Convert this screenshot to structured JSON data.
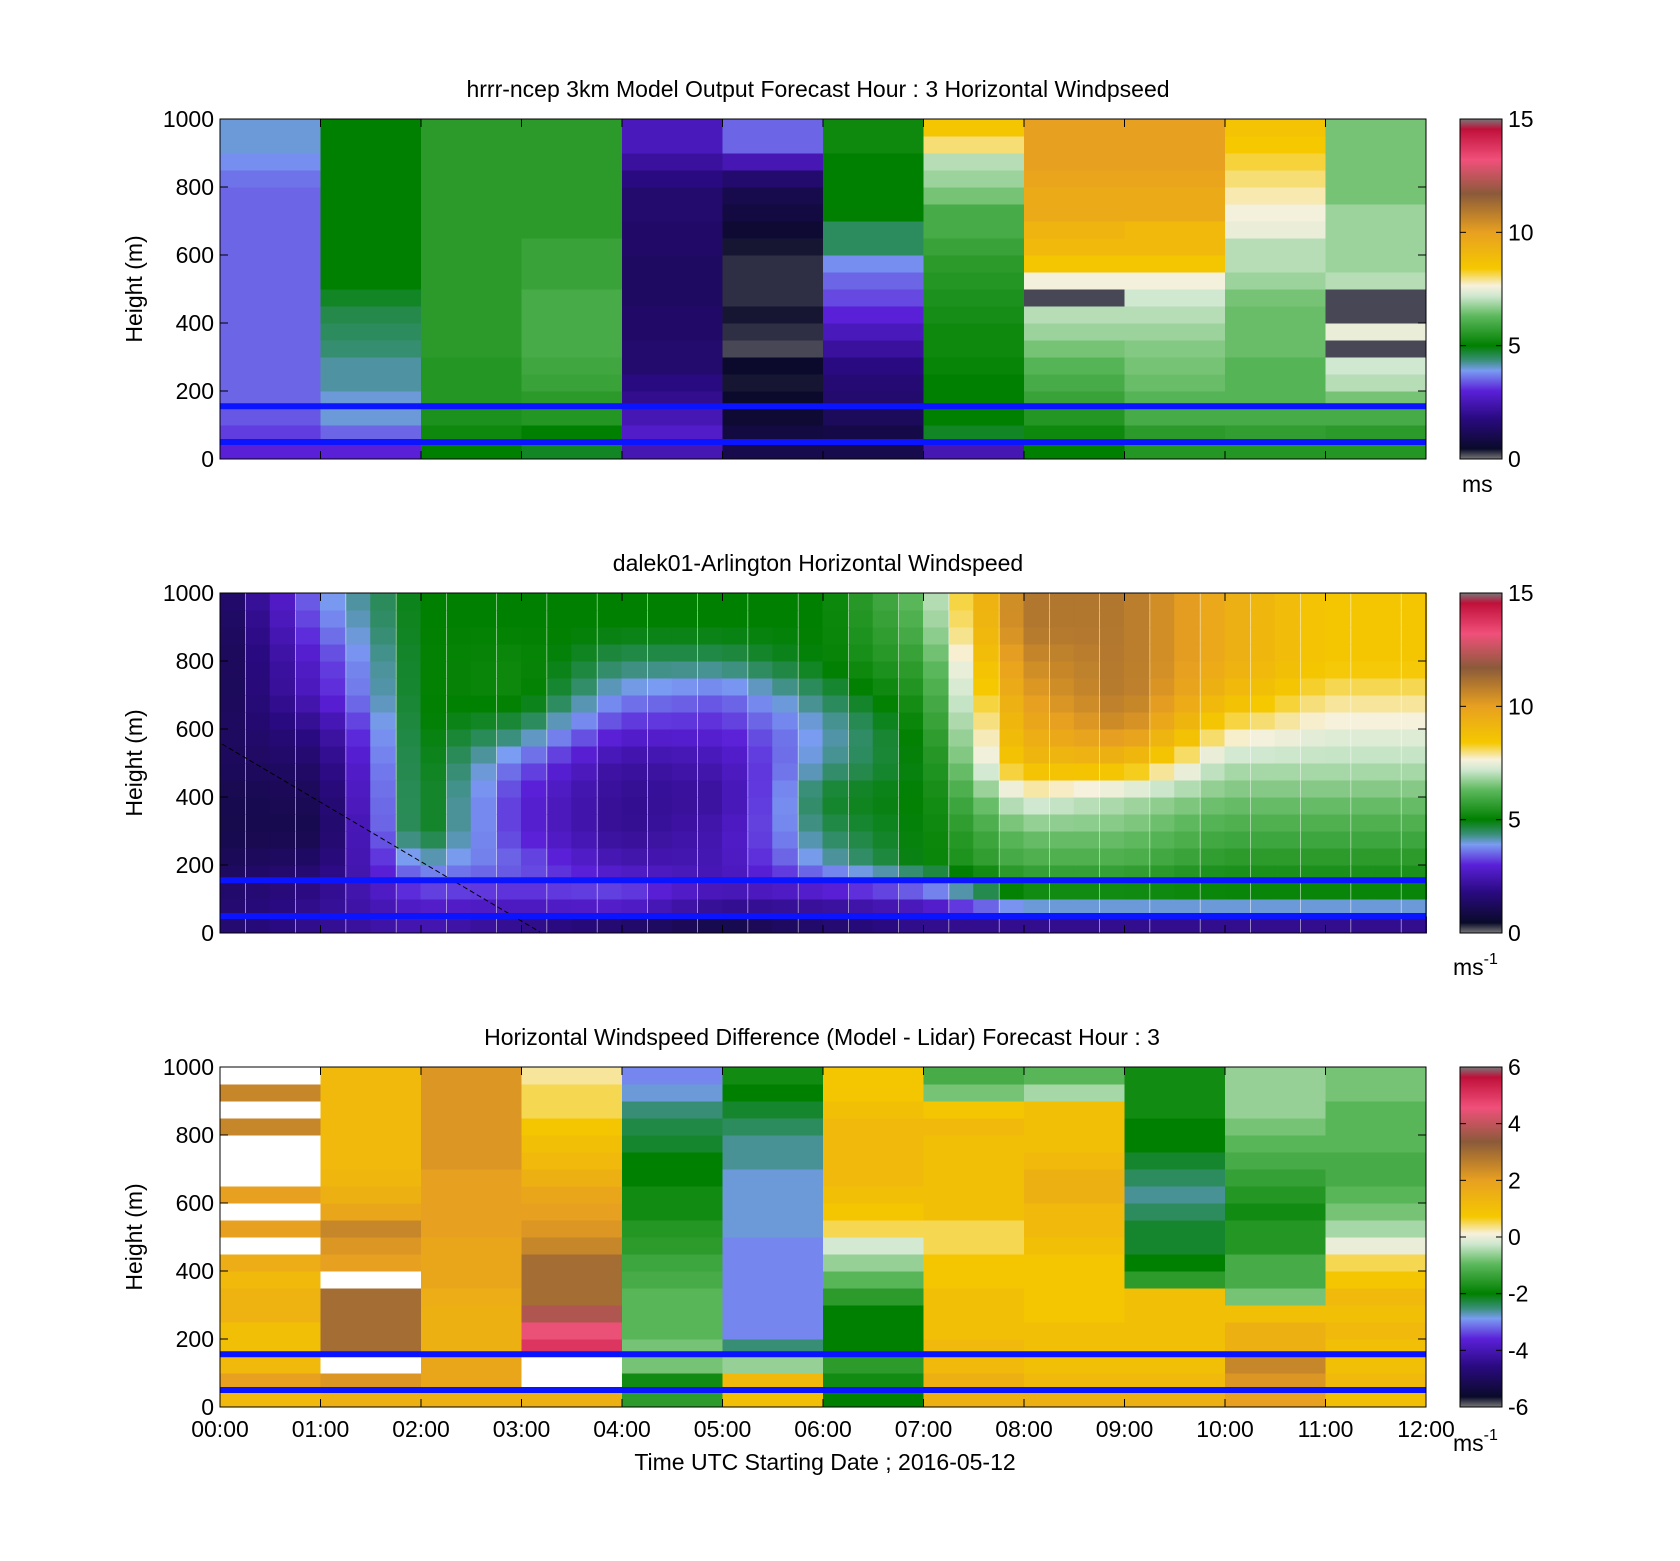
{
  "figure": {
    "xlabel": "Time UTC  Starting Date ; 2016-05-12",
    "x_ticks": [
      "00:00",
      "01:00",
      "02:00",
      "03:00",
      "04:00",
      "05:00",
      "06:00",
      "07:00",
      "08:00",
      "09:00",
      "10:00",
      "11:00",
      "12:00"
    ]
  },
  "chart_data": [
    {
      "type": "heatmap",
      "title": "hrrr-ncep 3km Model Output   Forecast Hour : 3 Horizontal Windpseed",
      "ylabel": "Height (m)",
      "xlim": [
        "00:00",
        "12:00"
      ],
      "ylim": [
        0,
        1000
      ],
      "y_ticks": [
        0,
        200,
        400,
        600,
        800,
        1000
      ],
      "colorbar": {
        "min": 0,
        "max": 15,
        "ticks": [
          0,
          5,
          10,
          15
        ],
        "unit": "ms",
        "palette": "speed"
      },
      "reference_lines_m": [
        50,
        155
      ],
      "heights_m": [
        25,
        75,
        125,
        175,
        225,
        275,
        325,
        375,
        425,
        475,
        525,
        575,
        625,
        675,
        725,
        775,
        825,
        875,
        925,
        975
      ],
      "values": [
        [
          3.0,
          3.2,
          3.4,
          3.5,
          3.5,
          3.5,
          3.5,
          3.5,
          3.5,
          3.5,
          3.5,
          3.5,
          3.5,
          3.5,
          3.5,
          3.5,
          3.6,
          3.8,
          4.0,
          4.0
        ],
        [
          3.0,
          3.5,
          4.0,
          4.0,
          4.2,
          4.2,
          4.4,
          4.5,
          4.6,
          4.8,
          5.0,
          5.0,
          5.0,
          5.0,
          5.0,
          5.0,
          5.0,
          5.0,
          5.0,
          5.0
        ],
        [
          5.0,
          5.2,
          5.4,
          5.5,
          5.5,
          5.5,
          5.6,
          5.6,
          5.6,
          5.6,
          5.6,
          5.6,
          5.6,
          5.6,
          5.6,
          5.6,
          5.6,
          5.6,
          5.6,
          5.6
        ],
        [
          4.8,
          5.0,
          5.5,
          5.6,
          5.8,
          5.9,
          6.0,
          6.0,
          6.0,
          6.0,
          5.8,
          5.8,
          5.8,
          5.6,
          5.6,
          5.6,
          5.6,
          5.6,
          5.6,
          5.6
        ],
        [
          2.5,
          2.8,
          2.5,
          2.0,
          1.8,
          1.5,
          1.5,
          1.4,
          1.4,
          1.3,
          1.3,
          1.3,
          1.4,
          1.4,
          1.5,
          1.5,
          1.8,
          2.2,
          2.6,
          2.6
        ],
        [
          1.0,
          0.8,
          0.6,
          0.5,
          0.4,
          0.5,
          0.2,
          0.3,
          0.4,
          0.3,
          0.3,
          0.3,
          0.4,
          0.6,
          0.8,
          1.0,
          1.5,
          2.5,
          3.5,
          3.5
        ],
        [
          1.0,
          0.9,
          1.2,
          1.5,
          1.6,
          1.8,
          2.2,
          2.6,
          3.0,
          3.3,
          3.5,
          3.8,
          4.5,
          4.5,
          5.0,
          5.0,
          5.0,
          5.0,
          5.2,
          5.2
        ],
        [
          2.5,
          4.8,
          5.0,
          5.0,
          5.0,
          5.1,
          5.2,
          5.2,
          5.3,
          5.4,
          5.5,
          5.6,
          5.8,
          6.0,
          6.0,
          6.5,
          6.8,
          7.0,
          8.0,
          8.5
        ],
        [
          5.0,
          5.2,
          5.5,
          5.8,
          6.0,
          6.2,
          6.5,
          6.8,
          7.0,
          0.2,
          7.6,
          8.5,
          9.0,
          9.2,
          9.6,
          9.6,
          9.8,
          10.0,
          10.0,
          10.0
        ],
        [
          5.5,
          5.6,
          6.0,
          6.2,
          6.4,
          6.5,
          6.6,
          6.8,
          7.0,
          7.2,
          7.6,
          8.5,
          9.0,
          9.0,
          9.6,
          9.6,
          9.8,
          10.0,
          10.0,
          10.0
        ],
        [
          5.5,
          5.7,
          6.0,
          6.2,
          6.2,
          6.2,
          6.4,
          6.4,
          6.4,
          6.5,
          6.8,
          7.0,
          7.0,
          7.5,
          7.6,
          7.8,
          8.0,
          8.2,
          8.4,
          8.6
        ],
        [
          5.5,
          5.6,
          6.0,
          6.5,
          7.0,
          7.2,
          0.2,
          7.5,
          0.2,
          0.2,
          7.0,
          6.8,
          6.8,
          6.8,
          6.8,
          6.5,
          6.5,
          6.5,
          6.5,
          6.5
        ]
      ]
    },
    {
      "type": "heatmap",
      "title": "dalek01-Arlington  Horizontal Windspeed",
      "ylabel": "Height (m)",
      "xlim": [
        "00:00",
        "12:00"
      ],
      "ylim": [
        0,
        1000
      ],
      "y_ticks": [
        0,
        200,
        400,
        600,
        800,
        1000
      ],
      "colorbar": {
        "min": 0,
        "max": 15,
        "ticks": [
          0,
          5,
          10,
          15
        ],
        "unit": "ms",
        "unit_exp": "-1",
        "palette": "speed"
      },
      "reference_lines_m": [
        50,
        155
      ],
      "time_hours": [
        0.12,
        0.38,
        0.62,
        0.88,
        1.12,
        1.38,
        1.62,
        1.88,
        2.12,
        2.38,
        2.62,
        2.88,
        3.12,
        3.38,
        3.62,
        3.88,
        4.12,
        4.38,
        4.62,
        4.88,
        5.12,
        5.38,
        5.62,
        5.88,
        6.12,
        6.38,
        6.62,
        6.88,
        7.12,
        7.38,
        7.62,
        7.88,
        8.12,
        8.38,
        8.62,
        8.88,
        9.12,
        9.38,
        9.62,
        9.88,
        10.12,
        10.38,
        10.62,
        10.88,
        11.12,
        11.38,
        11.62,
        11.88
      ],
      "heights_m": [
        25,
        75,
        125,
        175,
        225,
        275,
        325,
        375,
        425,
        475,
        525,
        575,
        625,
        675,
        725,
        775,
        825,
        875,
        925,
        975
      ],
      "profile_times_h": [
        0,
        1,
        2,
        3,
        4,
        5,
        6,
        7,
        8,
        9,
        10,
        11,
        12
      ],
      "profile_heights_m": [
        25,
        100,
        200,
        300,
        400,
        500,
        600,
        700,
        800,
        900,
        1000
      ],
      "profile_values": [
        [
          1.5,
          1.5,
          1.2,
          1.0,
          1.0,
          1.2,
          1.2,
          1.0,
          1.0,
          1.0,
          1.2
        ],
        [
          2.0,
          2.0,
          1.5,
          1.0,
          1.2,
          1.5,
          2.0,
          2.8,
          3.0,
          3.5,
          3.8
        ],
        [
          2.5,
          3.0,
          4.0,
          5.0,
          5.0,
          5.0,
          5.0,
          5.0,
          5.0,
          5.0,
          5.0
        ],
        [
          2.0,
          3.0,
          3.5,
          3.0,
          3.0,
          3.5,
          4.5,
          5.2,
          5.2,
          5.0,
          5.0
        ],
        [
          1.5,
          3.5,
          2.5,
          2.0,
          2.0,
          2.2,
          3.0,
          3.8,
          4.5,
          5.0,
          5.0
        ],
        [
          1.0,
          2.5,
          2.5,
          2.5,
          2.2,
          2.5,
          3.0,
          3.5,
          4.5,
          5.0,
          5.0
        ],
        [
          1.5,
          2.5,
          4.0,
          4.5,
          4.8,
          4.2,
          4.0,
          4.5,
          5.0,
          5.0,
          5.0
        ],
        [
          2.0,
          3.0,
          5.0,
          5.0,
          5.0,
          5.0,
          5.2,
          5.5,
          5.8,
          6.2,
          6.5
        ],
        [
          2.0,
          5.0,
          6.0,
          6.5,
          7.5,
          9.0,
          9.5,
          10.0,
          10.5,
          11.0,
          11.0
        ],
        [
          2.0,
          5.0,
          6.0,
          6.5,
          7.0,
          9.0,
          10.5,
          11.0,
          11.0,
          11.0,
          11.0
        ],
        [
          2.0,
          5.0,
          5.5,
          6.0,
          6.5,
          7.0,
          8.0,
          9.0,
          9.5,
          9.5,
          9.5
        ],
        [
          2.0,
          5.0,
          5.5,
          6.0,
          6.5,
          7.0,
          7.5,
          8.0,
          8.5,
          8.5,
          8.5
        ],
        [
          2.0,
          5.0,
          5.5,
          6.0,
          6.5,
          7.0,
          7.5,
          8.0,
          8.5,
          8.5,
          8.5
        ]
      ]
    },
    {
      "type": "heatmap",
      "title": "Horizontal Windspeed Difference (Model - Lidar) Forecast Hour : 3",
      "ylabel": "Height (m)",
      "xlim": [
        "00:00",
        "12:00"
      ],
      "ylim": [
        0,
        1000
      ],
      "y_ticks": [
        0,
        200,
        400,
        600,
        800,
        1000
      ],
      "colorbar": {
        "min": -6,
        "max": 6,
        "ticks": [
          -6,
          -4,
          -2,
          0,
          2,
          4,
          6
        ],
        "unit": "ms",
        "unit_exp": "-1",
        "palette": "diff"
      },
      "reference_lines_m": [
        50,
        155
      ],
      "heights_m": [
        25,
        75,
        125,
        175,
        225,
        275,
        325,
        375,
        425,
        475,
        525,
        575,
        625,
        675,
        725,
        775,
        825,
        875,
        925,
        975
      ],
      "values": [
        [
          1.2,
          2.0,
          1.2,
          1.0,
          1.0,
          1.4,
          1.4,
          1.2,
          1.6,
          null,
          2.0,
          null,
          2.0,
          null,
          null,
          null,
          2.5,
          null,
          2.5,
          null
        ],
        [
          1.5,
          2.2,
          null,
          3.0,
          3.0,
          3.0,
          3.0,
          null,
          2.0,
          2.2,
          2.5,
          1.8,
          1.5,
          1.3,
          1.2,
          1.2,
          1.2,
          1.2,
          1.2,
          1.2
        ],
        [
          1.5,
          1.8,
          1.8,
          1.5,
          1.5,
          1.5,
          1.6,
          1.8,
          1.8,
          1.8,
          2.0,
          2.0,
          2.0,
          2.0,
          2.2,
          2.2,
          2.2,
          2.2,
          2.2,
          2.2
        ],
        [
          1.5,
          null,
          null,
          5.0,
          4.5,
          3.8,
          3.0,
          3.0,
          3.0,
          2.5,
          2.2,
          2.0,
          1.8,
          1.5,
          1.2,
          1.0,
          0.8,
          0.5,
          0.5,
          0.3
        ],
        [
          -1.5,
          -1.8,
          -0.8,
          -0.8,
          -1.0,
          -1.0,
          -1.0,
          -1.2,
          -1.3,
          -1.5,
          -1.6,
          -1.8,
          -1.8,
          -2.0,
          -2.0,
          -2.2,
          -2.3,
          -2.5,
          -2.8,
          -3.0
        ],
        [
          1.0,
          1.2,
          -0.6,
          -2.5,
          -3.0,
          -3.0,
          -3.0,
          -3.0,
          -3.0,
          -3.0,
          -2.8,
          -2.8,
          -2.8,
          -2.8,
          -2.6,
          -2.6,
          -2.4,
          -2.2,
          -2.0,
          -1.8
        ],
        [
          -2.0,
          -1.8,
          -1.5,
          -2.0,
          -2.0,
          -2.0,
          -1.5,
          -1.0,
          -0.6,
          -0.2,
          0.5,
          0.8,
          1.0,
          1.2,
          1.2,
          1.2,
          1.2,
          1.0,
          0.8,
          0.8
        ],
        [
          1.5,
          1.5,
          1.2,
          1.2,
          1.0,
          1.0,
          1.0,
          0.8,
          0.8,
          0.5,
          0.5,
          1.0,
          1.0,
          1.0,
          1.0,
          1.0,
          1.2,
          0.8,
          -0.8,
          -1.2
        ],
        [
          1.5,
          1.2,
          1.0,
          1.0,
          1.0,
          0.8,
          0.8,
          0.8,
          0.8,
          1.0,
          1.2,
          1.2,
          1.5,
          1.5,
          1.2,
          1.0,
          1.0,
          1.0,
          -0.5,
          -1.0
        ],
        [
          1.5,
          1.2,
          1.0,
          1.0,
          1.0,
          1.0,
          1.0,
          -1.5,
          -2.0,
          -2.2,
          -2.2,
          -2.4,
          -2.6,
          -2.4,
          -2.2,
          -2.0,
          -2.0,
          -1.8,
          -1.8,
          -1.8
        ],
        [
          2.0,
          2.2,
          2.5,
          1.5,
          1.5,
          1.0,
          -0.8,
          -1.2,
          -1.2,
          -1.6,
          -1.6,
          -1.8,
          -1.6,
          -1.4,
          -1.2,
          -1.0,
          -0.8,
          -0.6,
          -0.6,
          -0.6
        ],
        [
          1.0,
          1.2,
          1.0,
          1.0,
          1.2,
          1.0,
          1.2,
          0.8,
          0.5,
          0.0,
          -0.5,
          -0.8,
          -1.0,
          -1.2,
          -1.2,
          -1.0,
          -1.0,
          -1.0,
          -0.8,
          -0.8
        ]
      ]
    }
  ]
}
